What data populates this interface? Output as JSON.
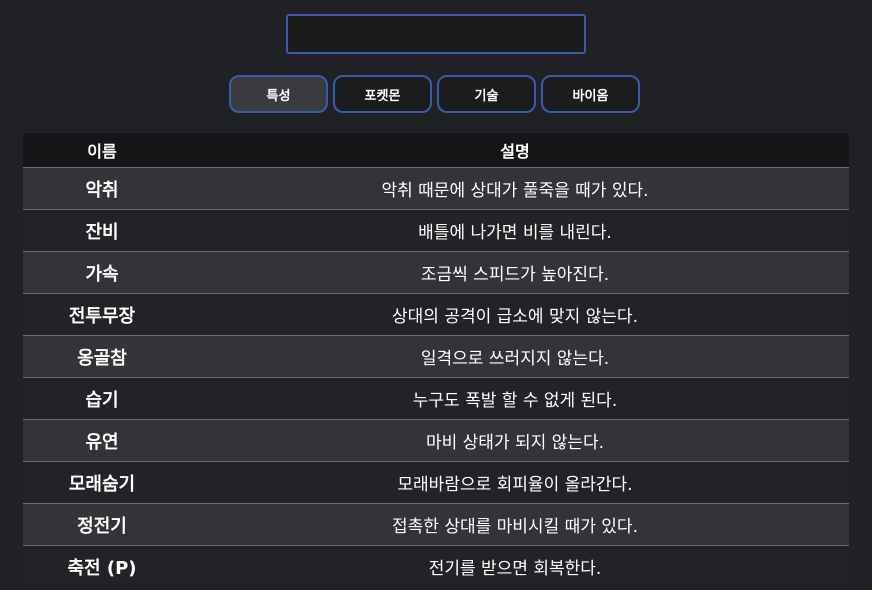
{
  "search": {
    "value": "",
    "placeholder": ""
  },
  "tabs": [
    {
      "label": "특성",
      "active": true
    },
    {
      "label": "포켓몬",
      "active": false
    },
    {
      "label": "기술",
      "active": false
    },
    {
      "label": "바이옴",
      "active": false
    }
  ],
  "table": {
    "headers": {
      "name": "이름",
      "description": "설명"
    },
    "rows": [
      {
        "name": "악취",
        "description": "악취 때문에 상대가 풀죽을 때가 있다."
      },
      {
        "name": "잔비",
        "description": "배틀에 나가면 비를 내린다."
      },
      {
        "name": "가속",
        "description": "조금씩 스피드가 높아진다."
      },
      {
        "name": "전투무장",
        "description": "상대의 공격이 급소에 맞지 않는다."
      },
      {
        "name": "옹골참",
        "description": "일격으로 쓰러지지 않는다."
      },
      {
        "name": "습기",
        "description": "누구도 폭발 할 수 없게 된다."
      },
      {
        "name": "유연",
        "description": "마비 상태가 되지 않는다."
      },
      {
        "name": "모래숨기",
        "description": "모래바람으로 회피율이 올라간다."
      },
      {
        "name": "정전기",
        "description": "접촉한 상대를 마비시킬 때가 있다."
      },
      {
        "name": "축전 (P)",
        "description": "전기를 받으면 회복한다."
      }
    ]
  },
  "colors": {
    "background": "#202124",
    "accent_border": "#3b5ca8",
    "header_bg": "#151618",
    "row_odd": "#333437",
    "row_even": "#222326"
  }
}
